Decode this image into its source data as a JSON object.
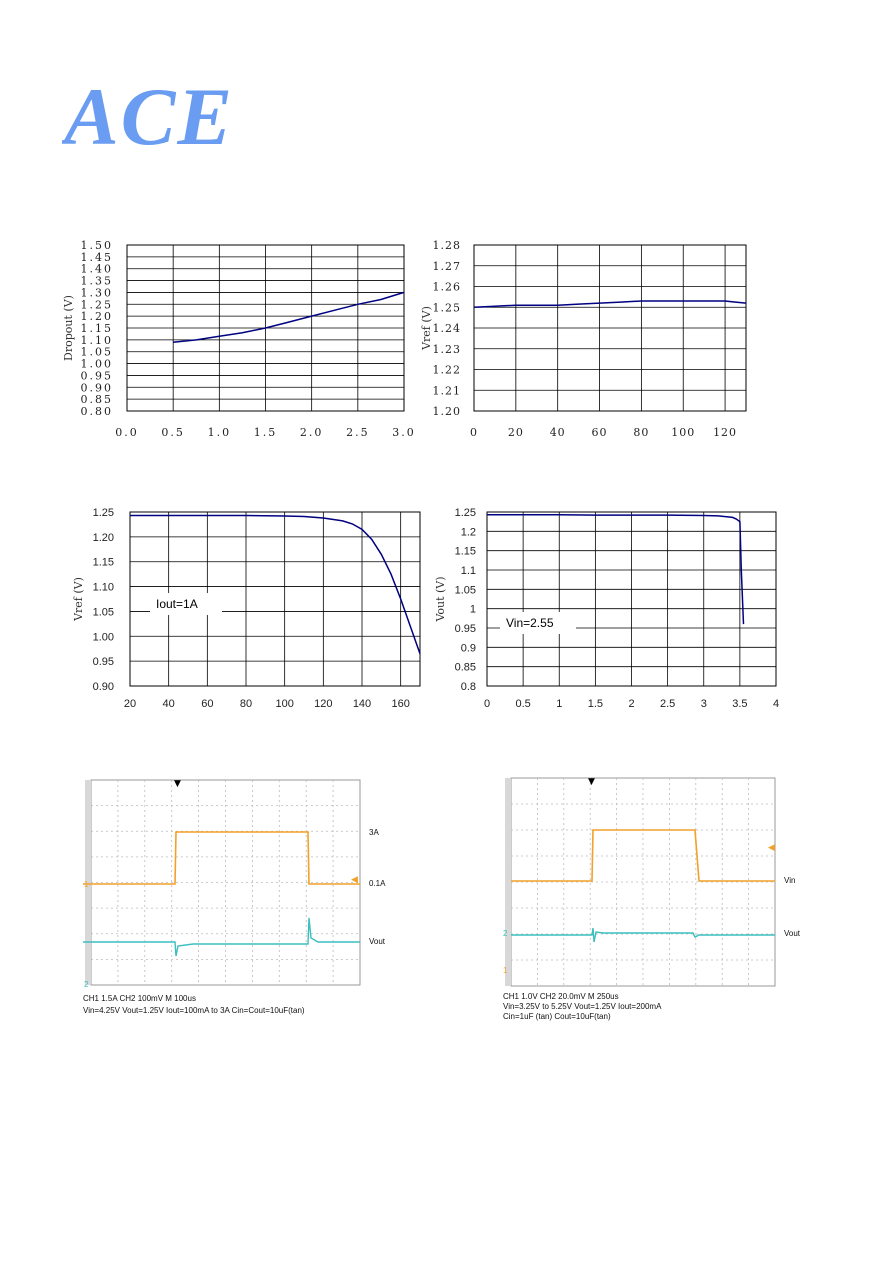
{
  "logo": {
    "text": "ACE",
    "color": "#6a9cf2"
  },
  "colors": {
    "curve": "#000080",
    "grid": "#000000",
    "scope_ch1": "#f2a12a",
    "scope_ch2": "#3bbfbf",
    "scope_grid": "#bbbbbb"
  },
  "chart_data": [
    {
      "type": "line",
      "ylabel": "Dropout (V)",
      "xlim": [
        0,
        3.0
      ],
      "ylim": [
        0.8,
        1.5
      ],
      "xticks": [
        "0.0",
        "0.5",
        "1.0",
        "1.5",
        "2.0",
        "2.5",
        "3.0"
      ],
      "yticks": [
        "1.50",
        "1.45",
        "1.40",
        "1.35",
        "1.30",
        "1.25",
        "1.20",
        "1.15",
        "1.10",
        "1.05",
        "1.00",
        "0.95",
        "0.90",
        "0.85",
        "0.80"
      ],
      "x": [
        0.5,
        0.75,
        1.0,
        1.25,
        1.5,
        1.75,
        2.0,
        2.25,
        2.5,
        2.75,
        3.0
      ],
      "y": [
        1.09,
        1.1,
        1.115,
        1.13,
        1.15,
        1.175,
        1.2,
        1.225,
        1.25,
        1.27,
        1.3
      ]
    },
    {
      "type": "line",
      "ylabel": "Vref (V)",
      "xlim": [
        0,
        130
      ],
      "ylim": [
        1.2,
        1.28
      ],
      "xticks": [
        "0",
        "20",
        "40",
        "60",
        "80",
        "100",
        "120"
      ],
      "yticks": [
        "1.28",
        "1.27",
        "1.26",
        "1.25",
        "1.24",
        "1.23",
        "1.22",
        "1.21",
        "1.20"
      ],
      "x": [
        0,
        10,
        20,
        30,
        40,
        50,
        60,
        70,
        80,
        90,
        100,
        110,
        120,
        125,
        130
      ],
      "y": [
        1.25,
        1.2505,
        1.251,
        1.251,
        1.251,
        1.2515,
        1.252,
        1.2525,
        1.253,
        1.253,
        1.253,
        1.253,
        1.253,
        1.2525,
        1.252
      ]
    },
    {
      "type": "line",
      "ylabel": "Vref (V)",
      "annotation": "Iout=1A",
      "xlim": [
        20,
        170
      ],
      "ylim": [
        0.9,
        1.25
      ],
      "xticks": [
        "20",
        "40",
        "60",
        "80",
        "100",
        "120",
        "140",
        "160"
      ],
      "yticks": [
        "1.25",
        "1.20",
        "1.15",
        "1.10",
        "1.05",
        "1.00",
        "0.95",
        "0.90"
      ],
      "x": [
        20,
        40,
        60,
        80,
        100,
        110,
        120,
        130,
        135,
        140,
        145,
        150,
        155,
        160,
        165,
        170
      ],
      "y": [
        1.243,
        1.243,
        1.243,
        1.243,
        1.242,
        1.241,
        1.238,
        1.232,
        1.226,
        1.215,
        1.195,
        1.165,
        1.125,
        1.075,
        1.02,
        0.965
      ]
    },
    {
      "type": "line",
      "ylabel": "Vout (V)",
      "annotation": "Vin=2.55",
      "xlim": [
        0,
        4
      ],
      "ylim": [
        0.8,
        1.25
      ],
      "xticks": [
        "0",
        "0.5",
        "1",
        "1.5",
        "2",
        "2.5",
        "3",
        "3.5",
        "4"
      ],
      "yticks": [
        "1.25",
        "1.2",
        "1.15",
        "1.1",
        "1.05",
        "1",
        "0.95",
        "0.9",
        "0.85",
        "0.8"
      ],
      "x": [
        0,
        0.5,
        1.0,
        1.5,
        2.0,
        2.5,
        3.0,
        3.2,
        3.4,
        3.45,
        3.5,
        3.52,
        3.55
      ],
      "y": [
        1.243,
        1.243,
        1.243,
        1.242,
        1.242,
        1.242,
        1.241,
        1.24,
        1.236,
        1.232,
        1.225,
        1.1,
        0.96
      ]
    }
  ],
  "scope1": {
    "ch1_high": "3A",
    "ch1_low": "0.1A",
    "ch2_label": "Vout",
    "marker1": "1",
    "marker2": "2",
    "caption_line1": "CH1  1.5A        CH2  100mV        M  100us",
    "caption_line2": "Vin=4.25V    Vout=1.25V    Iout=100mA to 3A    Cin=Cout=10uF(tan)"
  },
  "scope2": {
    "ch1_label": "Vin",
    "ch2_label": "Vout",
    "marker1": "1",
    "marker2": "2",
    "caption_line1": "CH1  1.0V     CH2   20.0mV     M 250us",
    "caption_line2": "Vin=3.25V to 5.25V    Vout=1.25V      Iout=200mA",
    "caption_line3": "Cin=1uF (tan)    Cout=10uF(tan)"
  }
}
